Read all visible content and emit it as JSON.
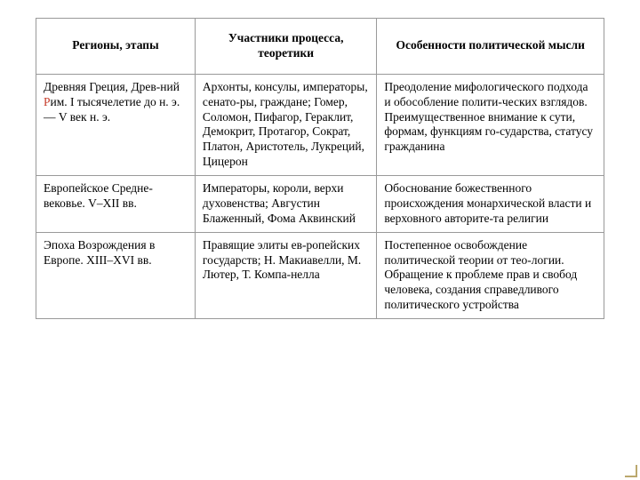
{
  "table": {
    "columns": [
      "Регионы, этапы",
      "Участники процесса, теоретики",
      "Особенности политической мысли"
    ],
    "rows": [
      {
        "region_html": "Древняя Греция, Древ-ний <span class=\"accent\">Р</span>им. I тысячелетие до н. э. — V век н. э.",
        "participants": "Архонты, консулы, императоры, сенато-ры, граждане; Гомер, Соломон, Пифагор, Гераклит, Демокрит, Протагор, Сократ, Платон, Аристотель, Лукреций, Цицерон",
        "features": "Преодоление мифологического подхода и обособление полити-ческих взглядов.\nПреимущественное внимание к сути, формам, функциям го-сударства, статусу гражданина"
      },
      {
        "region_html": "Европейское Средне-вековье. V–XII вв.",
        "participants": "Императоры, короли, верхи духовенства; Августин Блаженный, Фома Аквинский",
        "features": "Обоснование божественного происхождения монархической власти и верховного авторите-та религии"
      },
      {
        "region_html": "Эпоха Возрождения в Европе. XIII–XVI вв.",
        "participants": "Правящие элиты ев-ропейских государств; Н. Макиавелли, М. Лютер, Т. Компа-нелла",
        "features": "Постепенное освобождение политической теории от тео-логии.\nОбращение к проблеме прав и свобод человека, создания справедливого политического устройства"
      }
    ],
    "colors": {
      "border": "#999999",
      "text": "#000000",
      "background": "#ffffff",
      "accent": "#c63c2a",
      "corner": "#bba86e"
    },
    "font": {
      "family": "Times New Roman",
      "size_pt": 13.5,
      "header_weight": "bold"
    },
    "column_widths_pct": [
      28,
      32,
      40
    ]
  }
}
